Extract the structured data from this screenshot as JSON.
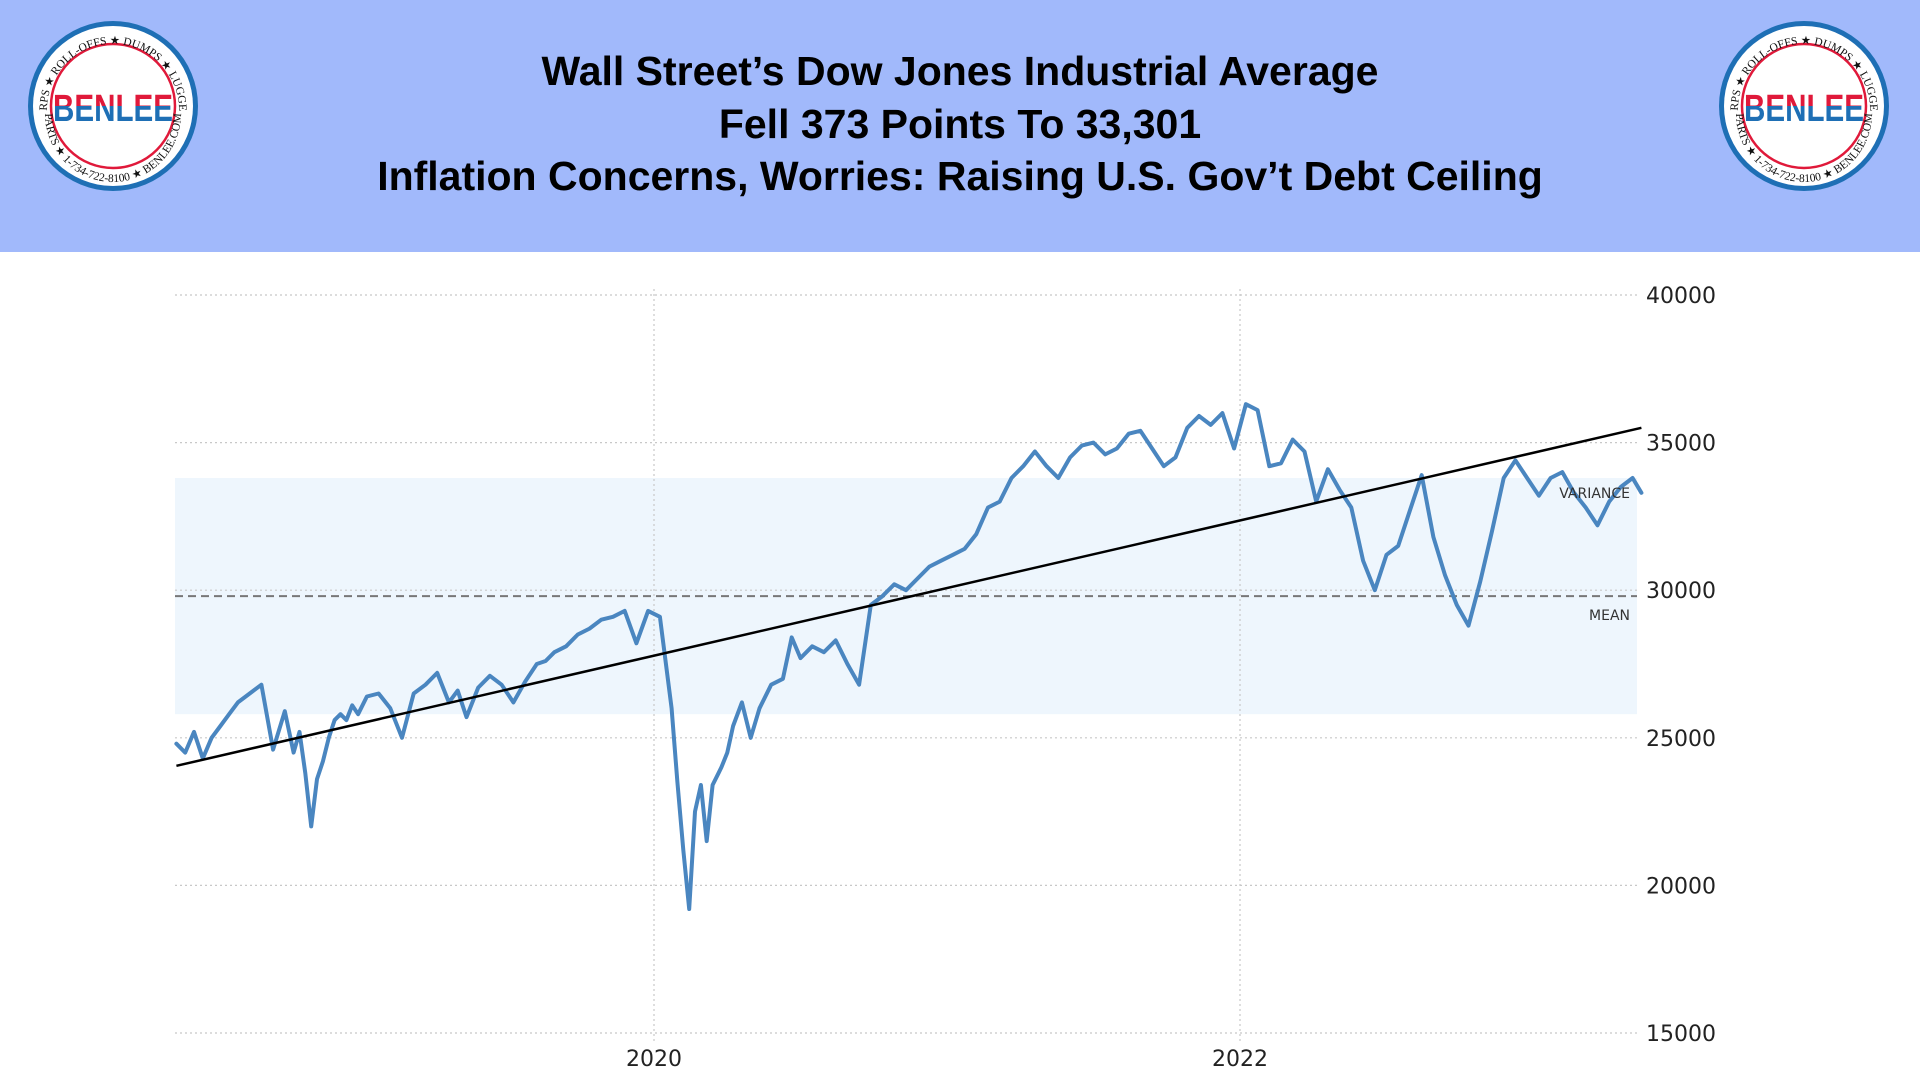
{
  "header": {
    "title_lines": [
      "Wall Street’s Dow Jones Industrial Average",
      "Fell 373 Points To 33,301",
      "Inflation Concerns, Worries: Raising U.S. Gov’t Debt Ceiling"
    ],
    "background_color": "#a1b9fb"
  },
  "logo": {
    "brand": "BENLEE",
    "ring_text_top": "TARPS ★ ROLL-OFFS ★ DUMPS ★ LUGGERS",
    "ring_text_bottom": "PARTS ★ 1-734-722-8100 ★ BENLEE.COM",
    "brand_red": "#e0193a",
    "brand_blue": "#1e6fb5"
  },
  "chart_data": {
    "type": "line",
    "title": "",
    "xlabel": "",
    "ylabel": "",
    "x_ticks": [
      2020,
      2022
    ],
    "x_tick_labels": [
      "2020",
      "2022"
    ],
    "y_ticks": [
      15000,
      20000,
      25000,
      30000,
      35000,
      40000
    ],
    "y_tick_labels": [
      "15000",
      "20000",
      "25000",
      "30000",
      "35000",
      "40000"
    ],
    "ylim": [
      15000,
      40000
    ],
    "xlim": [
      2018.37,
      2023.4
    ],
    "y_axis_side": "right",
    "grid": true,
    "line_color": "#4a86c0",
    "trend_color": "#000000",
    "series": [
      {
        "name": "Dow Jones Industrial Average",
        "x": [
          2018.37,
          2018.4,
          2018.43,
          2018.46,
          2018.49,
          2018.52,
          2018.55,
          2018.58,
          2018.62,
          2018.66,
          2018.7,
          2018.74,
          2018.77,
          2018.79,
          2018.81,
          2018.83,
          2018.85,
          2018.87,
          2018.89,
          2018.91,
          2018.93,
          2018.95,
          2018.97,
          2018.99,
          2019.02,
          2019.06,
          2019.1,
          2019.14,
          2019.18,
          2019.22,
          2019.26,
          2019.3,
          2019.33,
          2019.36,
          2019.4,
          2019.44,
          2019.48,
          2019.52,
          2019.56,
          2019.6,
          2019.63,
          2019.66,
          2019.7,
          2019.74,
          2019.78,
          2019.82,
          2019.86,
          2019.9,
          2019.94,
          2019.98,
          2020.02,
          2020.06,
          2020.08,
          2020.1,
          2020.12,
          2020.14,
          2020.16,
          2020.18,
          2020.2,
          2020.22,
          2020.23,
          2020.25,
          2020.27,
          2020.3,
          2020.33,
          2020.36,
          2020.4,
          2020.44,
          2020.47,
          2020.5,
          2020.54,
          2020.58,
          2020.62,
          2020.66,
          2020.7,
          2020.74,
          2020.78,
          2020.82,
          2020.86,
          2020.9,
          2020.94,
          2020.98,
          2021.02,
          2021.06,
          2021.1,
          2021.14,
          2021.18,
          2021.22,
          2021.26,
          2021.3,
          2021.34,
          2021.38,
          2021.42,
          2021.46,
          2021.5,
          2021.54,
          2021.58,
          2021.62,
          2021.66,
          2021.7,
          2021.74,
          2021.78,
          2021.82,
          2021.86,
          2021.9,
          2021.94,
          2021.98,
          2022.02,
          2022.06,
          2022.1,
          2022.14,
          2022.18,
          2022.22,
          2022.26,
          2022.3,
          2022.34,
          2022.38,
          2022.42,
          2022.46,
          2022.5,
          2022.54,
          2022.58,
          2022.62,
          2022.66,
          2022.7,
          2022.74,
          2022.78,
          2022.82,
          2022.86,
          2022.9,
          2022.94,
          2022.98,
          2023.02,
          2023.06,
          2023.1,
          2023.14,
          2023.18,
          2023.22,
          2023.26,
          2023.3,
          2023.34,
          2023.37
        ],
        "y": [
          24800,
          24500,
          25200,
          24300,
          25000,
          25400,
          25800,
          26200,
          26500,
          26800,
          24600,
          25900,
          24500,
          25200,
          23800,
          22000,
          23600,
          24200,
          25000,
          25600,
          25800,
          25600,
          26100,
          25800,
          26400,
          26500,
          26000,
          25000,
          26500,
          26800,
          27200,
          26200,
          26600,
          25700,
          26700,
          27100,
          26800,
          26200,
          26900,
          27500,
          27600,
          27900,
          28100,
          28500,
          28700,
          29000,
          29100,
          29300,
          28200,
          29300,
          29100,
          26000,
          23500,
          21200,
          19200,
          22500,
          23400,
          21500,
          23400,
          23800,
          24000,
          24500,
          25400,
          26200,
          25000,
          26000,
          26800,
          27000,
          28400,
          27700,
          28100,
          27900,
          28300,
          27500,
          26800,
          29500,
          29800,
          30200,
          30000,
          30400,
          30800,
          31000,
          31200,
          31400,
          31900,
          32800,
          33000,
          33800,
          34200,
          34700,
          34200,
          33800,
          34500,
          34900,
          35000,
          34600,
          34800,
          35300,
          35400,
          34800,
          34200,
          34500,
          35500,
          35900,
          35600,
          36000,
          34800,
          36300,
          36100,
          34200,
          34300,
          35100,
          34700,
          33000,
          34100,
          33400,
          32800,
          31000,
          30000,
          31200,
          31500,
          32700,
          33900,
          31800,
          30500,
          29500,
          28800,
          30300,
          32000,
          33800,
          34400,
          33800,
          33200,
          33800,
          34000,
          33300,
          32800,
          32200,
          33000,
          33500,
          33800,
          33300
        ],
        "note": "approximate values read from the plotted line"
      },
      {
        "name": "Trend line",
        "type": "line",
        "x": [
          2018.37,
          2023.37
        ],
        "y": [
          24050,
          35500
        ]
      }
    ],
    "annotations": [
      {
        "label": "VARIANCE",
        "type": "band",
        "y_range": [
          25800,
          33800
        ],
        "color": "#eef6fd"
      },
      {
        "label": "MEAN",
        "type": "hline",
        "y": 29800,
        "style": "dashed"
      }
    ]
  }
}
